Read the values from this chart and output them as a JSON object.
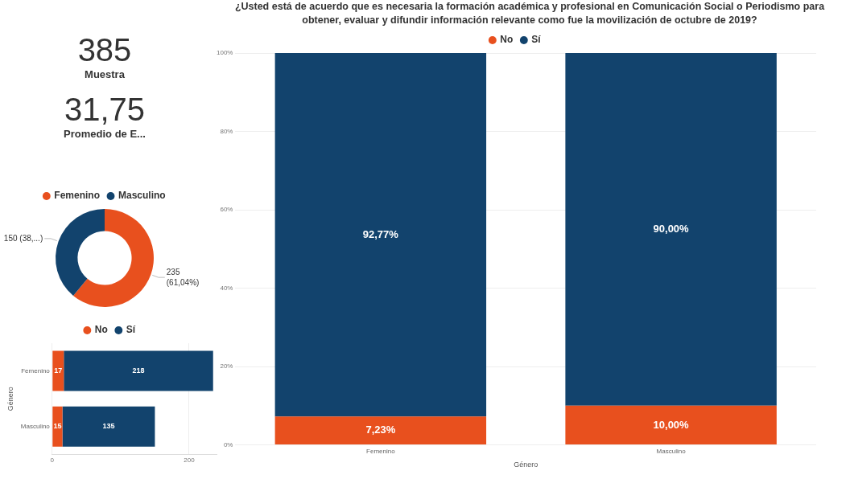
{
  "chart_data": [
    {
      "type": "other",
      "annotations": [
        "385",
        "Muestra",
        "31,75",
        "Promedio de E..."
      ]
    },
    {
      "type": "donut",
      "categories": [
        "Femenino",
        "Masculino"
      ],
      "values": [
        235,
        150
      ],
      "colors": [
        "#e8501e",
        "#12436d"
      ],
      "value_labels": [
        "235 (61,04%)",
        "150 (38,...)"
      ],
      "legend": "top"
    },
    {
      "type": "bar",
      "orientation": "horizontal",
      "stacked": true,
      "categories": [
        "Femenino",
        "Masculino"
      ],
      "ylabel": "Género",
      "xlim": [
        0,
        240
      ],
      "xticks": [
        0,
        200
      ],
      "grid": "x",
      "legend": "top",
      "data_labels": true,
      "series": [
        {
          "name": "No",
          "color": "#e8501e",
          "values": [
            17,
            15
          ]
        },
        {
          "name": "Sí",
          "color": "#12436d",
          "values": [
            218,
            135
          ]
        }
      ]
    },
    {
      "type": "bar",
      "stacked": true,
      "title": "¿Usted está de acuerdo que es necesaria la formación académica y profesional en Comunicación Social o Periodismo para obtener, evaluar y difundir información relevante como fue la movilización de octubre de 2019?",
      "categories": [
        "Femenino",
        "Masculino"
      ],
      "xlabel": "Género",
      "ylim": [
        0,
        100
      ],
      "yticks": [
        {
          "value": 0,
          "label": "0%"
        },
        {
          "value": 20,
          "label": "20%"
        },
        {
          "value": 40,
          "label": "40%"
        },
        {
          "value": 60,
          "label": "60%"
        },
        {
          "value": 80,
          "label": "80%"
        },
        {
          "value": 100,
          "label": "100%"
        }
      ],
      "grid": "y",
      "legend": "top",
      "series": [
        {
          "name": "No",
          "color": "#e8501e",
          "values": [
            7.23,
            10.0
          ],
          "value_labels": [
            "7,23%",
            "10,00%"
          ]
        },
        {
          "name": "Sí",
          "color": "#12436d",
          "values": [
            92.77,
            90.0
          ],
          "value_labels": [
            "92,77%",
            "90,00%"
          ]
        }
      ]
    }
  ]
}
